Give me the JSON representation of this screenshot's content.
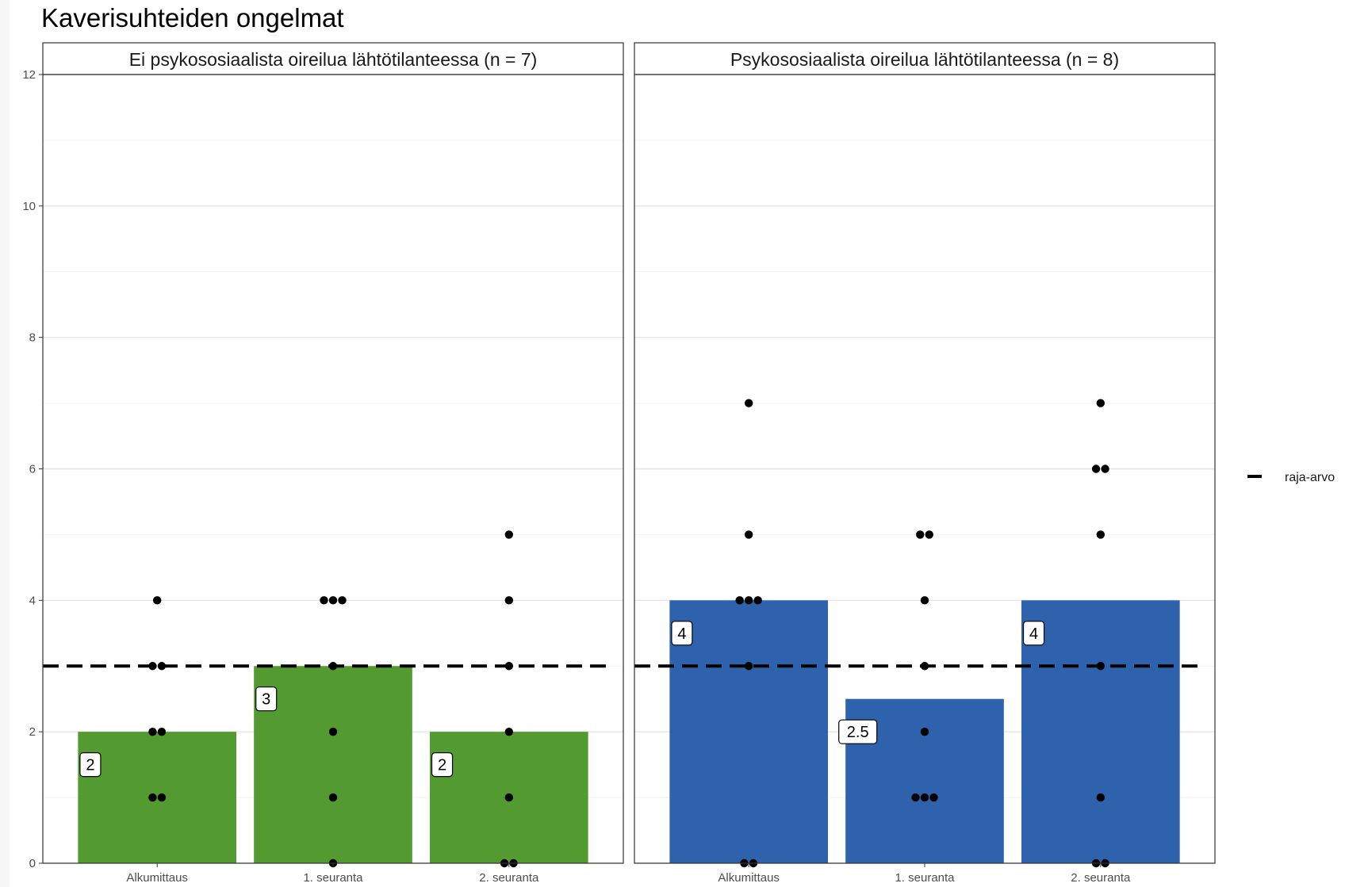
{
  "chart_data": {
    "type": "bar",
    "title": "Kaverisuhteiden ongelmat",
    "categories": [
      "Alkumittaus",
      "1. seuranta",
      "2. seuranta"
    ],
    "ylim": [
      0,
      12
    ],
    "yticks": [
      0,
      2,
      4,
      6,
      8,
      10,
      12
    ],
    "threshold": 3,
    "legend": {
      "label": "raja-arvo",
      "position": "right"
    },
    "grid": true,
    "panels": [
      {
        "title": "Ei psykososiaalista oireilua lähtötilanteessa (n = 7)",
        "bar_color": "#539a30",
        "values": [
          2,
          3,
          2
        ],
        "labels": [
          "2",
          "3",
          "2"
        ],
        "points": [
          [
            1,
            1,
            2,
            2,
            3,
            3,
            4
          ],
          [
            0,
            1,
            2,
            3,
            4,
            4,
            4
          ],
          [
            0,
            0,
            1,
            2,
            3,
            4,
            5
          ]
        ]
      },
      {
        "title": "Psykososiaalista oireilua lähtötilanteessa (n = 8)",
        "bar_color": "#2e62ac",
        "values": [
          4,
          2.5,
          4
        ],
        "labels": [
          "4",
          "2.5",
          "4"
        ],
        "points": [
          [
            0,
            0,
            3,
            4,
            4,
            4,
            5,
            7
          ],
          [
            1,
            1,
            1,
            2,
            3,
            4,
            5,
            5
          ],
          [
            0,
            0,
            1,
            3,
            5,
            6,
            6,
            7
          ]
        ]
      }
    ]
  }
}
